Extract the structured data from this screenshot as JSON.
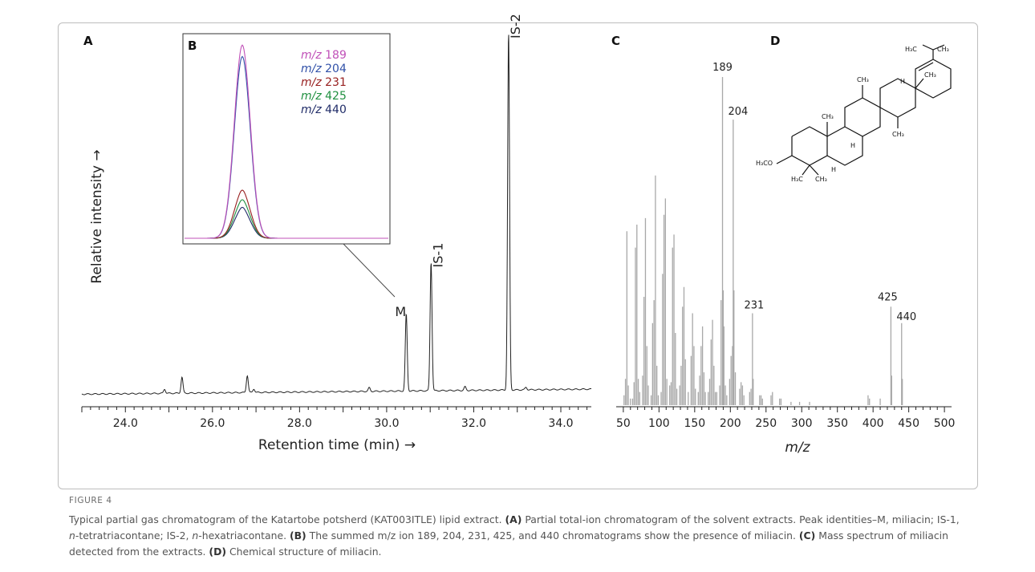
{
  "panels": {
    "A": {
      "label": "A",
      "ylabel": "Relative intensity →",
      "xlabel": "Retention time (min) →"
    },
    "B": {
      "label": "B"
    },
    "C": {
      "label": "C",
      "xlabel": "m/z"
    },
    "D": {
      "label": "D"
    }
  },
  "structure": {
    "labels": [
      "H₃C",
      "CH₃",
      "CH₃",
      "H",
      "CH₃",
      "CH₃",
      "H",
      "CH₃",
      "H₃CO",
      "H₃C",
      "CH₃",
      "H"
    ]
  },
  "caption": {
    "figure_label": "FIGURE 4",
    "text_1": "Typical partial gas chromatogram of the Katartobe potsherd (KAT003ITLE) lipid extract. ",
    "a_label": "(A)",
    "text_2": " Partial total-ion chromatogram of the solvent extracts. Peak identities–M, miliacin; IS-1, ",
    "n1": "n",
    "text_3": "-tetratriacontane; IS-2, ",
    "n2": "n",
    "text_4": "-hexatriacontane. ",
    "b_label": "(B)",
    "text_5": " The summed m/z ion 189, 204, 231, 425, and 440 chromatograms show the presence of miliacin. ",
    "c_label": "(C)",
    "text_6": " Mass spectrum of miliacin detected from the extracts. ",
    "d_label": "(D)",
    "text_7": " Chemical structure of miliacin."
  },
  "chart_data": [
    {
      "type": "line",
      "panel": "A",
      "title": "",
      "xlabel": "Retention time (min) →",
      "ylabel": "Relative intensity →",
      "xlim": [
        23.0,
        34.7
      ],
      "ylim": [
        0,
        100
      ],
      "xticks": [
        24.0,
        26.0,
        28.0,
        30.0,
        32.0,
        34.0
      ],
      "xtick_labels": [
        "24.0",
        "26.0",
        "28.0",
        "30.0",
        "32.0",
        "34.0"
      ],
      "peaks": [
        {
          "x": 24.9,
          "y": 1.2
        },
        {
          "x": 25.3,
          "y": 4.5
        },
        {
          "x": 26.8,
          "y": 4.8
        },
        {
          "x": 26.95,
          "y": 1.0
        },
        {
          "x": 29.6,
          "y": 1.0
        },
        {
          "x": 30.45,
          "y": 21.5,
          "label": "M"
        },
        {
          "x": 31.02,
          "y": 36.0,
          "label": "IS-1"
        },
        {
          "x": 31.8,
          "y": 1.0
        },
        {
          "x": 32.8,
          "y": 100.0,
          "label": "IS-2"
        },
        {
          "x": 33.2,
          "y": 0.7
        }
      ]
    },
    {
      "type": "line",
      "panel": "B",
      "title": "",
      "series": [
        {
          "name": "m/z 189",
          "color": "#c050b8",
          "peak": 100
        },
        {
          "name": "m/z 204",
          "color": "#3050a8",
          "peak": 94
        },
        {
          "name": "m/z 231",
          "color": "#982020",
          "peak": 24
        },
        {
          "name": "m/z 425",
          "color": "#209040",
          "peak": 19
        },
        {
          "name": "m/z 440",
          "color": "#202c68",
          "peak": 15
        }
      ]
    },
    {
      "type": "bar",
      "panel": "C",
      "title": "",
      "xlabel": "m/z",
      "ylabel": "",
      "xlim": [
        40,
        510
      ],
      "ylim": [
        0,
        100
      ],
      "xticks": [
        50,
        100,
        150,
        200,
        250,
        300,
        350,
        400,
        450,
        500
      ],
      "peaks": [
        {
          "mz": 51,
          "i": 3
        },
        {
          "mz": 53,
          "i": 8
        },
        {
          "mz": 55,
          "i": 53
        },
        {
          "mz": 57,
          "i": 6
        },
        {
          "mz": 60,
          "i": 2
        },
        {
          "mz": 63,
          "i": 2
        },
        {
          "mz": 65,
          "i": 7
        },
        {
          "mz": 67,
          "i": 48
        },
        {
          "mz": 69,
          "i": 55
        },
        {
          "mz": 71,
          "i": 8
        },
        {
          "mz": 73,
          "i": 4
        },
        {
          "mz": 77,
          "i": 9
        },
        {
          "mz": 79,
          "i": 33
        },
        {
          "mz": 81,
          "i": 57
        },
        {
          "mz": 83,
          "i": 18
        },
        {
          "mz": 85,
          "i": 6
        },
        {
          "mz": 89,
          "i": 3
        },
        {
          "mz": 91,
          "i": 25
        },
        {
          "mz": 93,
          "i": 32
        },
        {
          "mz": 95,
          "i": 70
        },
        {
          "mz": 97,
          "i": 12
        },
        {
          "mz": 99,
          "i": 3
        },
        {
          "mz": 103,
          "i": 4
        },
        {
          "mz": 105,
          "i": 40
        },
        {
          "mz": 107,
          "i": 58
        },
        {
          "mz": 109,
          "i": 63
        },
        {
          "mz": 111,
          "i": 8
        },
        {
          "mz": 115,
          "i": 6
        },
        {
          "mz": 117,
          "i": 7
        },
        {
          "mz": 119,
          "i": 48
        },
        {
          "mz": 121,
          "i": 52
        },
        {
          "mz": 123,
          "i": 22
        },
        {
          "mz": 125,
          "i": 5
        },
        {
          "mz": 129,
          "i": 6
        },
        {
          "mz": 131,
          "i": 12
        },
        {
          "mz": 133,
          "i": 30
        },
        {
          "mz": 135,
          "i": 36
        },
        {
          "mz": 137,
          "i": 14
        },
        {
          "mz": 141,
          "i": 4
        },
        {
          "mz": 145,
          "i": 15
        },
        {
          "mz": 147,
          "i": 28
        },
        {
          "mz": 149,
          "i": 18
        },
        {
          "mz": 151,
          "i": 5
        },
        {
          "mz": 155,
          "i": 4
        },
        {
          "mz": 157,
          "i": 9
        },
        {
          "mz": 159,
          "i": 18
        },
        {
          "mz": 161,
          "i": 24
        },
        {
          "mz": 163,
          "i": 10
        },
        {
          "mz": 165,
          "i": 4
        },
        {
          "mz": 169,
          "i": 4
        },
        {
          "mz": 171,
          "i": 8
        },
        {
          "mz": 173,
          "i": 20
        },
        {
          "mz": 175,
          "i": 26
        },
        {
          "mz": 177,
          "i": 12
        },
        {
          "mz": 179,
          "i": 4
        },
        {
          "mz": 181,
          "i": 4
        },
        {
          "mz": 185,
          "i": 6
        },
        {
          "mz": 187,
          "i": 32
        },
        {
          "mz": 189,
          "i": 100,
          "label": "189"
        },
        {
          "mz": 190,
          "i": 35
        },
        {
          "mz": 191,
          "i": 24
        },
        {
          "mz": 193,
          "i": 6
        },
        {
          "mz": 195,
          "i": 3
        },
        {
          "mz": 199,
          "i": 8
        },
        {
          "mz": 201,
          "i": 15
        },
        {
          "mz": 203,
          "i": 18
        },
        {
          "mz": 204,
          "i": 87,
          "label": "204"
        },
        {
          "mz": 205,
          "i": 35
        },
        {
          "mz": 207,
          "i": 10
        },
        {
          "mz": 213,
          "i": 5
        },
        {
          "mz": 215,
          "i": 7
        },
        {
          "mz": 217,
          "i": 6
        },
        {
          "mz": 219,
          "i": 3
        },
        {
          "mz": 227,
          "i": 4
        },
        {
          "mz": 229,
          "i": 5
        },
        {
          "mz": 231,
          "i": 28,
          "label": "231"
        },
        {
          "mz": 232,
          "i": 8
        },
        {
          "mz": 241,
          "i": 3
        },
        {
          "mz": 243,
          "i": 3
        },
        {
          "mz": 245,
          "i": 2
        },
        {
          "mz": 257,
          "i": 3
        },
        {
          "mz": 259,
          "i": 4
        },
        {
          "mz": 269,
          "i": 2
        },
        {
          "mz": 271,
          "i": 2
        },
        {
          "mz": 285,
          "i": 1
        },
        {
          "mz": 297,
          "i": 1
        },
        {
          "mz": 311,
          "i": 1
        },
        {
          "mz": 393,
          "i": 3
        },
        {
          "mz": 395,
          "i": 2
        },
        {
          "mz": 410,
          "i": 2
        },
        {
          "mz": 425,
          "i": 30,
          "label": "425"
        },
        {
          "mz": 426,
          "i": 9
        },
        {
          "mz": 440,
          "i": 25,
          "label": "440"
        },
        {
          "mz": 441,
          "i": 8
        }
      ]
    }
  ]
}
